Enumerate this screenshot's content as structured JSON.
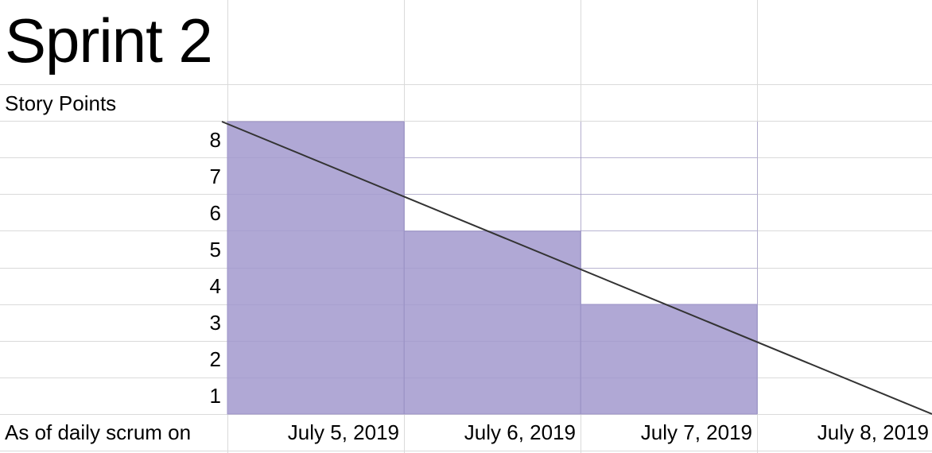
{
  "sheet": {
    "title": "Sprint 2",
    "ylabel": "Story Points",
    "xlabel": "As of daily scrum on"
  },
  "chart_data": {
    "type": "bar",
    "title": "Sprint 2",
    "ylabel": "Story Points",
    "xlabel": "As of daily scrum on",
    "categories": [
      "July 5, 2019",
      "July 6, 2019",
      "July 7, 2019",
      "July 8, 2019"
    ],
    "series": [
      {
        "values": [
          8,
          5,
          3,
          0
        ],
        "color": "#b0a8d5"
      }
    ],
    "ideal_line": {
      "start": 8,
      "end": 0
    },
    "yticks": [
      1,
      2,
      3,
      4,
      5,
      6,
      7,
      8
    ],
    "ylim": [
      0,
      8
    ],
    "grid": true
  },
  "colors": {
    "bar": "#b0a8d5",
    "bar_edge": "#9c93c7",
    "grid": "#dadada",
    "line": "#333333"
  }
}
